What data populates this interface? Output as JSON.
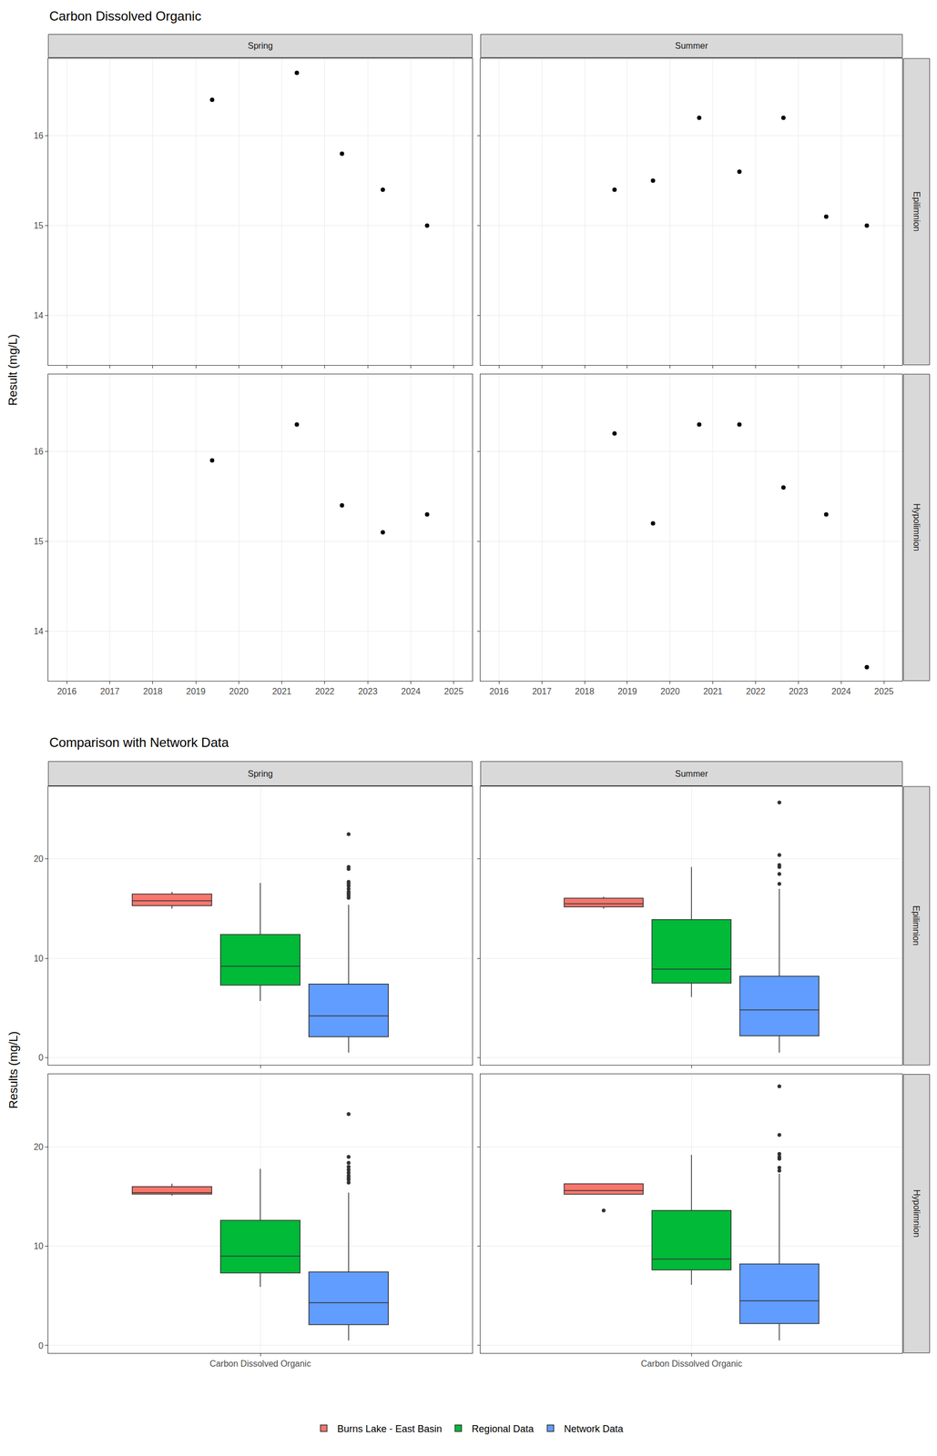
{
  "chart_data": [
    {
      "type": "scatter",
      "title": "Carbon Dissolved Organic",
      "y_label": "Result (mg/L)",
      "facet_columns": [
        "Spring",
        "Summer"
      ],
      "facet_rows": [
        "Epilimnion",
        "Hypolimnion"
      ],
      "xlim": [
        2015.57,
        2025.43
      ],
      "xticks": [
        2016,
        2017,
        2018,
        2019,
        2020,
        2021,
        2022,
        2023,
        2024,
        2025
      ],
      "ylim": [
        13.45,
        16.86
      ],
      "yticks": [
        14,
        15,
        16
      ],
      "grid": true,
      "color": "#000000",
      "marker": "circle",
      "panels": [
        {
          "column": "Spring",
          "row": "Epilimnion",
          "x": [
            2019.38,
            2021.35,
            2022.4,
            2023.35,
            2024.38
          ],
          "values": [
            16.4,
            16.7,
            15.8,
            15.4,
            15.0
          ]
        },
        {
          "column": "Summer",
          "row": "Epilimnion",
          "x": [
            2018.7,
            2019.6,
            2020.68,
            2021.62,
            2022.65,
            2023.65,
            2024.6
          ],
          "values": [
            15.4,
            15.5,
            16.2,
            15.6,
            16.2,
            15.1,
            15.0
          ]
        },
        {
          "column": "Spring",
          "row": "Hypolimnion",
          "x": [
            2019.38,
            2021.35,
            2022.4,
            2023.35,
            2024.38
          ],
          "values": [
            15.9,
            16.3,
            15.4,
            15.1,
            15.3
          ]
        },
        {
          "column": "Summer",
          "row": "Hypolimnion",
          "x": [
            2018.7,
            2019.6,
            2020.68,
            2021.62,
            2022.65,
            2023.65,
            2024.6
          ],
          "values": [
            16.2,
            15.2,
            16.3,
            16.3,
            15.6,
            15.3,
            13.6
          ]
        }
      ]
    },
    {
      "type": "box",
      "title": "Comparison with Network Data",
      "y_label": "Results (mg/L)",
      "facet_columns": [
        "Spring",
        "Summer"
      ],
      "facet_rows": [
        "Epilimnion",
        "Hypolimnion"
      ],
      "categories": [
        "Carbon Dissolved Organic"
      ],
      "ylim": [
        -0.75,
        27.3
      ],
      "yticks": [
        0,
        10,
        20
      ],
      "grid": true,
      "legend": "bottom",
      "series": [
        {
          "name": "Burns Lake - East Basin",
          "color": "#F8766D"
        },
        {
          "name": "Regional Data",
          "color": "#00BA38"
        },
        {
          "name": "Network Data",
          "color": "#619CFF"
        }
      ],
      "panels": [
        {
          "column": "Spring",
          "row": "Epilimnion",
          "boxes": [
            {
              "series": "Burns Lake - East Basin",
              "values": [
                16.4,
                16.7,
                15.8,
                15.4,
                15.0
              ]
            },
            {
              "series": "Regional Data",
              "q1": 7.3,
              "median": 9.2,
              "q3": 12.4,
              "lowerfence": 5.7,
              "upperfence": 17.6,
              "outliers": []
            },
            {
              "series": "Network Data",
              "q1": 2.1,
              "median": 4.2,
              "q3": 7.4,
              "lowerfence": 0.5,
              "upperfence": 15.4,
              "outliers": [
                16.1,
                16.3,
                16.5,
                16.7,
                17.0,
                17.3,
                17.5,
                17.7,
                19.0,
                19.2,
                22.5
              ]
            }
          ]
        },
        {
          "column": "Summer",
          "row": "Epilimnion",
          "boxes": [
            {
              "series": "Burns Lake - East Basin",
              "values": [
                15.4,
                15.5,
                16.2,
                15.6,
                16.2,
                15.1,
                15.0
              ]
            },
            {
              "series": "Regional Data",
              "q1": 7.5,
              "median": 8.9,
              "q3": 13.9,
              "lowerfence": 6.1,
              "upperfence": 19.2,
              "outliers": []
            },
            {
              "series": "Network Data",
              "q1": 2.2,
              "median": 4.8,
              "q3": 8.2,
              "lowerfence": 0.5,
              "upperfence": 17.0,
              "outliers": [
                17.5,
                18.5,
                19.2,
                19.4,
                20.4,
                25.7
              ]
            }
          ]
        },
        {
          "column": "Spring",
          "row": "Hypolimnion",
          "boxes": [
            {
              "series": "Burns Lake - East Basin",
              "values": [
                15.9,
                16.3,
                15.4,
                15.1,
                15.3
              ]
            },
            {
              "series": "Regional Data",
              "q1": 7.3,
              "median": 9.0,
              "q3": 12.6,
              "lowerfence": 5.9,
              "upperfence": 17.8,
              "outliers": []
            },
            {
              "series": "Network Data",
              "q1": 2.1,
              "median": 4.3,
              "q3": 7.4,
              "lowerfence": 0.5,
              "upperfence": 15.4,
              "outliers": [
                16.4,
                16.7,
                16.9,
                17.1,
                17.4,
                17.7,
                18.0,
                18.4,
                19.0,
                23.3
              ]
            }
          ]
        },
        {
          "column": "Summer",
          "row": "Hypolimnion",
          "boxes": [
            {
              "series": "Burns Lake - East Basin",
              "values": [
                16.2,
                15.2,
                16.3,
                16.3,
                15.6,
                15.3,
                13.6
              ]
            },
            {
              "series": "Regional Data",
              "q1": 7.6,
              "median": 8.7,
              "q3": 13.6,
              "lowerfence": 6.1,
              "upperfence": 19.2,
              "outliers": []
            },
            {
              "series": "Network Data",
              "q1": 2.2,
              "median": 4.5,
              "q3": 8.2,
              "lowerfence": 0.5,
              "upperfence": 17.3,
              "outliers": [
                17.6,
                17.9,
                18.8,
                19.0,
                19.3,
                21.2,
                26.1
              ]
            }
          ]
        }
      ]
    }
  ]
}
